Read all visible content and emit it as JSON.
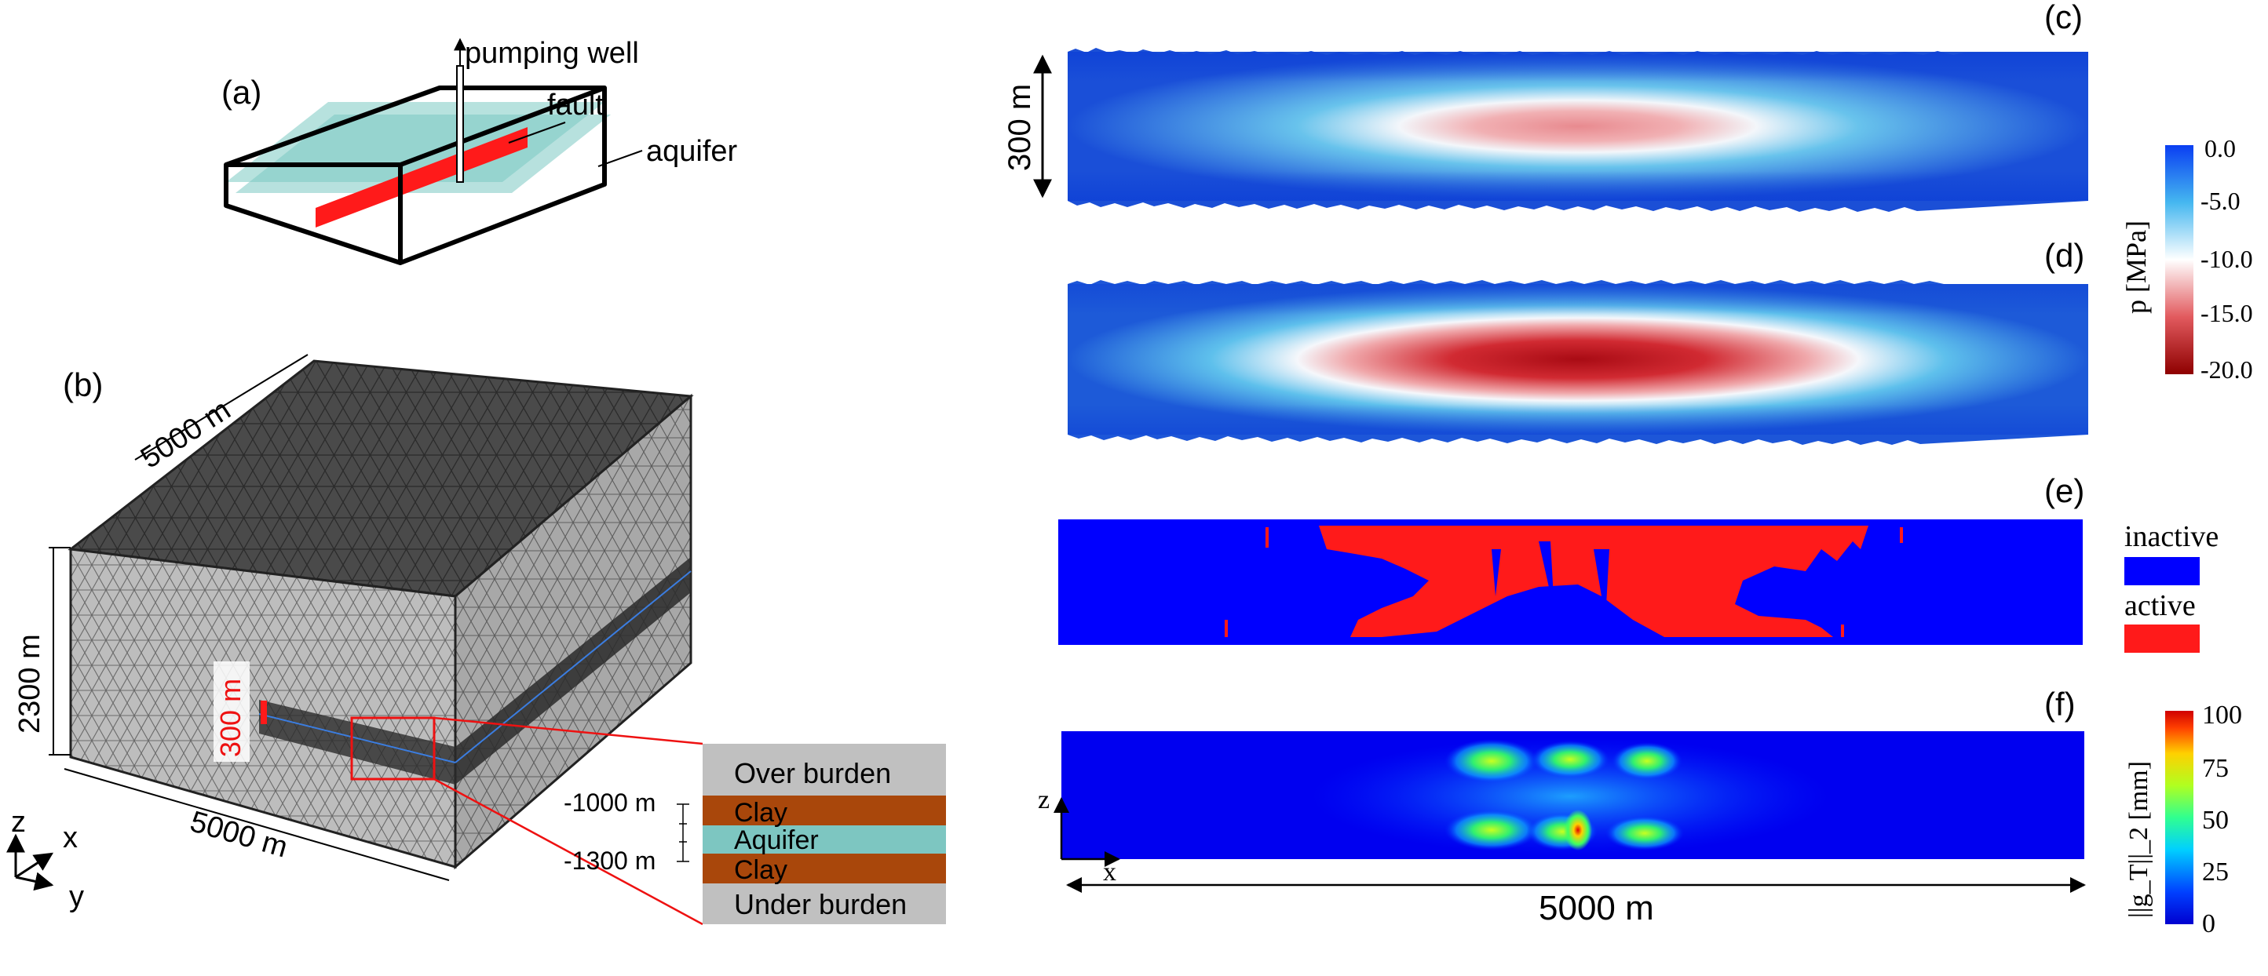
{
  "panel_a": {
    "label": "(a)",
    "pumping_well": "pumping well",
    "fault": "fault",
    "aquifer": "aquifer"
  },
  "panel_b": {
    "label": "(b)",
    "dim_top": "5000 m",
    "dim_front": "5000 m",
    "dim_height": "2300 m",
    "fault_height": "300 m",
    "axis_z": "z",
    "axis_x": "x",
    "axis_y": "y",
    "depth_top": "-1000 m",
    "depth_bottom": "-1300 m",
    "layers": [
      {
        "name": "Over burden",
        "color": "#c0c0c0"
      },
      {
        "name": "Clay",
        "color": "#a9470b"
      },
      {
        "name": "Aquifer",
        "color": "#7dc6c1"
      },
      {
        "name": "Clay",
        "color": "#a9470b"
      },
      {
        "name": "Under burden",
        "color": "#c0c0c0"
      }
    ]
  },
  "panel_c": {
    "label": "(c)",
    "height_label": "300 m"
  },
  "panel_d": {
    "label": "(d)"
  },
  "panel_e": {
    "label": "(e)",
    "legend_inactive": "inactive",
    "legend_active": "active",
    "inactive_color": "#0000ff",
    "active_color": "#ff0000"
  },
  "panel_f": {
    "label": "(f)",
    "axis_z": "z",
    "axis_x": "x",
    "width_label": "5000 m"
  },
  "colorbar_pressure": {
    "title": "p [MPa]",
    "ticks": [
      "0.0",
      "-5.0",
      "-10.0",
      "-15.0",
      "-20.0"
    ]
  },
  "colorbar_slip": {
    "title": "||g_T||_2 [mm]",
    "ticks": [
      "100",
      "75",
      "50",
      "25",
      "0"
    ]
  }
}
